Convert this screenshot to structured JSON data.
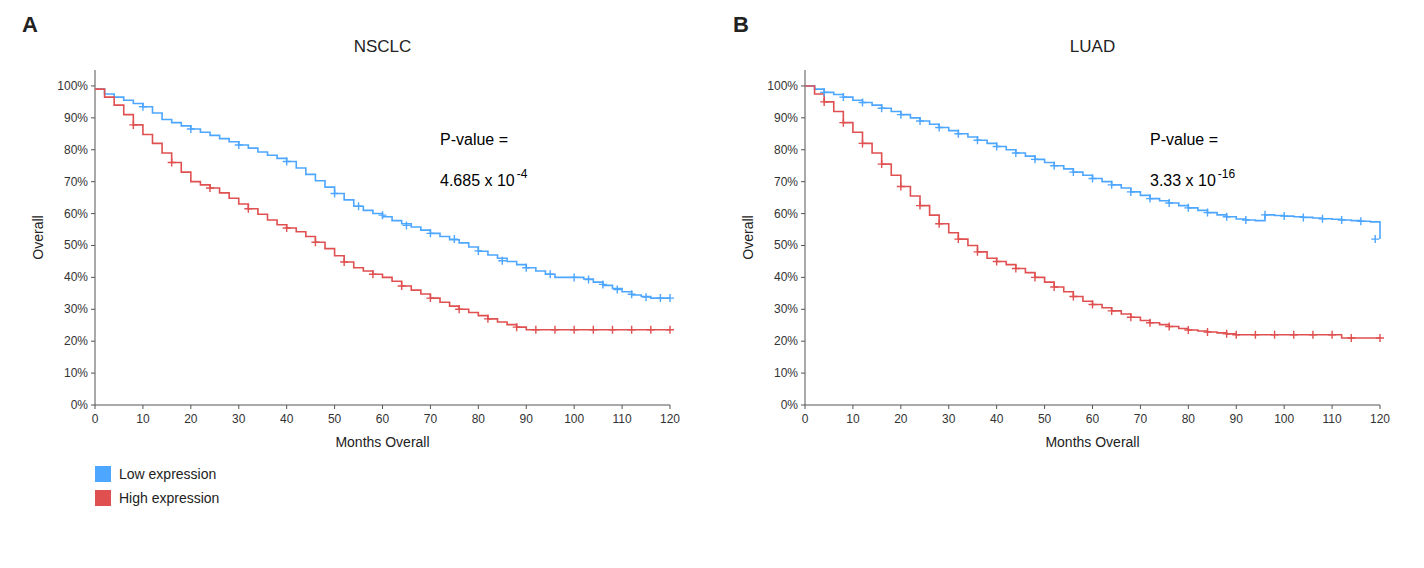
{
  "chart_data": [
    {
      "type": "step",
      "title": "NSCLC",
      "panel_label": "A",
      "x_label": "Months Overall",
      "y_label": "Overall",
      "annotations": [
        "P-value =",
        "4.685 x 10",
        "-4"
      ],
      "xlim": [
        0,
        120
      ],
      "ylim": [
        0,
        1.05
      ],
      "xticks": [
        0,
        10,
        20,
        30,
        40,
        50,
        60,
        70,
        80,
        90,
        100,
        110,
        120
      ],
      "yticks": [
        {
          "value": 0.0,
          "label": "0%"
        },
        {
          "value": 0.1,
          "label": "10%"
        },
        {
          "value": 0.2,
          "label": "20%"
        },
        {
          "value": 0.3,
          "label": "30%"
        },
        {
          "value": 0.4,
          "label": "40%"
        },
        {
          "value": 0.5,
          "label": "50%"
        },
        {
          "value": 0.6,
          "label": "60%"
        },
        {
          "value": 0.7,
          "label": "70%"
        },
        {
          "value": 0.8,
          "label": "80%"
        },
        {
          "value": 0.9,
          "label": "90%"
        },
        {
          "value": 1.0,
          "label": "100%"
        }
      ],
      "grid": false,
      "legend": "lower left",
      "series": [
        {
          "name": "Low expression",
          "type": "step",
          "color": "#4da6ff",
          "x": [
            0,
            2,
            4,
            6,
            8,
            10,
            12,
            14,
            16,
            18,
            20,
            22,
            24,
            26,
            28,
            30,
            32,
            34,
            36,
            38,
            40,
            42,
            44,
            46,
            48,
            50,
            52,
            54,
            56,
            58,
            60,
            62,
            64,
            66,
            68,
            70,
            72,
            74,
            76,
            78,
            80,
            82,
            84,
            86,
            88,
            90,
            92,
            94,
            96,
            98,
            100,
            102,
            104,
            106,
            108,
            110,
            112,
            114,
            116,
            118,
            120
          ],
          "values": [
            0.99,
            0.975,
            0.965,
            0.955,
            0.945,
            0.935,
            0.915,
            0.895,
            0.885,
            0.875,
            0.865,
            0.855,
            0.845,
            0.835,
            0.825,
            0.815,
            0.805,
            0.793,
            0.783,
            0.773,
            0.763,
            0.743,
            0.723,
            0.703,
            0.683,
            0.663,
            0.643,
            0.623,
            0.61,
            0.6,
            0.59,
            0.578,
            0.568,
            0.558,
            0.548,
            0.538,
            0.528,
            0.518,
            0.508,
            0.495,
            0.482,
            0.47,
            0.46,
            0.45,
            0.44,
            0.43,
            0.42,
            0.41,
            0.4,
            0.4,
            0.4,
            0.395,
            0.385,
            0.375,
            0.365,
            0.355,
            0.345,
            0.34,
            0.335,
            0.335,
            0.335
          ]
        },
        {
          "name": "High expression",
          "type": "step",
          "color": "#e05050",
          "x": [
            0,
            2,
            4,
            6,
            8,
            10,
            12,
            14,
            16,
            18,
            20,
            22,
            24,
            26,
            28,
            30,
            32,
            34,
            36,
            38,
            40,
            42,
            44,
            46,
            48,
            50,
            52,
            54,
            56,
            58,
            60,
            62,
            64,
            66,
            68,
            70,
            72,
            74,
            76,
            78,
            80,
            82,
            84,
            86,
            88,
            90,
            92,
            94,
            96,
            98,
            100,
            102,
            104,
            106,
            108,
            110,
            112,
            114,
            116,
            118,
            120
          ],
          "values": [
            0.99,
            0.965,
            0.94,
            0.91,
            0.878,
            0.848,
            0.82,
            0.79,
            0.76,
            0.73,
            0.7,
            0.69,
            0.68,
            0.665,
            0.648,
            0.63,
            0.615,
            0.598,
            0.58,
            0.565,
            0.555,
            0.543,
            0.528,
            0.51,
            0.49,
            0.468,
            0.448,
            0.43,
            0.42,
            0.41,
            0.4,
            0.388,
            0.373,
            0.36,
            0.348,
            0.335,
            0.322,
            0.31,
            0.3,
            0.29,
            0.28,
            0.27,
            0.26,
            0.252,
            0.244,
            0.236,
            0.236,
            0.236,
            0.236,
            0.236,
            0.236,
            0.236,
            0.236,
            0.236,
            0.236,
            0.236,
            0.236,
            0.236,
            0.236,
            0.236,
            0.236
          ]
        },
        {
          "type": "scatter",
          "marker": "plus",
          "color": "#4da6ff",
          "x": [
            10,
            20,
            30,
            40,
            50,
            55,
            60,
            65,
            70,
            75,
            80,
            85,
            90,
            95,
            100,
            103,
            106,
            109,
            112,
            115,
            118,
            120
          ],
          "values": [
            0.935,
            0.865,
            0.815,
            0.763,
            0.663,
            0.623,
            0.595,
            0.563,
            0.538,
            0.52,
            0.483,
            0.452,
            0.43,
            0.41,
            0.4,
            0.393,
            0.378,
            0.362,
            0.347,
            0.338,
            0.335,
            0.335
          ]
        },
        {
          "type": "scatter",
          "marker": "plus",
          "color": "#e05050",
          "x": [
            8,
            16,
            24,
            32,
            40,
            46,
            52,
            58,
            64,
            70,
            76,
            82,
            88,
            92,
            96,
            100,
            104,
            108,
            112,
            116,
            120
          ],
          "values": [
            0.878,
            0.76,
            0.68,
            0.615,
            0.555,
            0.51,
            0.448,
            0.41,
            0.373,
            0.335,
            0.3,
            0.27,
            0.244,
            0.236,
            0.236,
            0.236,
            0.236,
            0.236,
            0.236,
            0.236,
            0.236
          ]
        }
      ]
    },
    {
      "type": "step",
      "title": "LUAD",
      "panel_label": "B",
      "x_label": "Months Overall",
      "y_label": "Overall",
      "annotations": [
        "P-value =",
        "3.33 x 10",
        "-16"
      ],
      "xlim": [
        0,
        120
      ],
      "ylim": [
        0,
        1.05
      ],
      "xticks": [
        0,
        10,
        20,
        30,
        40,
        50,
        60,
        70,
        80,
        90,
        100,
        110,
        120
      ],
      "yticks": [
        {
          "value": 0.0,
          "label": "0%"
        },
        {
          "value": 0.1,
          "label": "10%"
        },
        {
          "value": 0.2,
          "label": "20%"
        },
        {
          "value": 0.3,
          "label": "30%"
        },
        {
          "value": 0.4,
          "label": "40%"
        },
        {
          "value": 0.5,
          "label": "50%"
        },
        {
          "value": 0.6,
          "label": "60%"
        },
        {
          "value": 0.7,
          "label": "70%"
        },
        {
          "value": 0.8,
          "label": "80%"
        },
        {
          "value": 0.9,
          "label": "90%"
        },
        {
          "value": 1.0,
          "label": "100%"
        }
      ],
      "grid": false,
      "series": [
        {
          "type": "step",
          "color": "#4da6ff",
          "x": [
            0,
            2,
            4,
            6,
            8,
            10,
            12,
            14,
            16,
            18,
            20,
            22,
            24,
            26,
            28,
            30,
            32,
            34,
            36,
            38,
            40,
            42,
            44,
            46,
            48,
            50,
            52,
            54,
            56,
            58,
            60,
            62,
            64,
            66,
            68,
            70,
            72,
            74,
            76,
            78,
            80,
            82,
            84,
            86,
            88,
            90,
            92,
            94,
            96,
            98,
            100,
            102,
            104,
            106,
            108,
            110,
            112,
            114,
            116,
            118,
            120
          ],
          "values": [
            1.0,
            0.99,
            0.98,
            0.973,
            0.965,
            0.955,
            0.948,
            0.94,
            0.93,
            0.92,
            0.91,
            0.9,
            0.89,
            0.88,
            0.87,
            0.86,
            0.85,
            0.84,
            0.83,
            0.82,
            0.81,
            0.8,
            0.79,
            0.78,
            0.77,
            0.76,
            0.75,
            0.74,
            0.73,
            0.72,
            0.71,
            0.7,
            0.69,
            0.68,
            0.668,
            0.657,
            0.647,
            0.64,
            0.633,
            0.625,
            0.618,
            0.61,
            0.603,
            0.596,
            0.59,
            0.583,
            0.58,
            0.578,
            0.596,
            0.594,
            0.592,
            0.59,
            0.588,
            0.586,
            0.584,
            0.582,
            0.58,
            0.578,
            0.576,
            0.574,
            0.52
          ]
        },
        {
          "type": "step",
          "color": "#e05050",
          "x": [
            0,
            2,
            4,
            6,
            8,
            10,
            12,
            14,
            16,
            18,
            20,
            22,
            24,
            26,
            28,
            30,
            32,
            34,
            36,
            38,
            40,
            42,
            44,
            46,
            48,
            50,
            52,
            54,
            56,
            58,
            60,
            62,
            64,
            66,
            68,
            70,
            72,
            74,
            76,
            78,
            80,
            82,
            84,
            86,
            88,
            90,
            92,
            94,
            96,
            98,
            100,
            102,
            104,
            106,
            108,
            110,
            112,
            114,
            116,
            118,
            120
          ],
          "values": [
            1.0,
            0.975,
            0.95,
            0.92,
            0.885,
            0.855,
            0.82,
            0.79,
            0.755,
            0.72,
            0.685,
            0.655,
            0.625,
            0.595,
            0.568,
            0.54,
            0.52,
            0.5,
            0.48,
            0.46,
            0.45,
            0.44,
            0.428,
            0.415,
            0.4,
            0.385,
            0.37,
            0.355,
            0.34,
            0.325,
            0.315,
            0.305,
            0.295,
            0.285,
            0.275,
            0.265,
            0.258,
            0.252,
            0.246,
            0.24,
            0.235,
            0.232,
            0.229,
            0.226,
            0.223,
            0.22,
            0.22,
            0.22,
            0.22,
            0.22,
            0.22,
            0.22,
            0.22,
            0.22,
            0.22,
            0.22,
            0.21,
            0.21,
            0.21,
            0.21,
            0.21
          ]
        },
        {
          "type": "scatter",
          "marker": "plus",
          "color": "#4da6ff",
          "x": [
            4,
            8,
            12,
            16,
            20,
            24,
            28,
            32,
            36,
            40,
            44,
            48,
            52,
            56,
            60,
            64,
            68,
            72,
            76,
            80,
            84,
            88,
            92,
            96,
            100,
            104,
            108,
            112,
            116,
            119
          ],
          "values": [
            0.98,
            0.965,
            0.948,
            0.93,
            0.91,
            0.89,
            0.87,
            0.85,
            0.83,
            0.81,
            0.79,
            0.77,
            0.75,
            0.73,
            0.71,
            0.69,
            0.668,
            0.647,
            0.633,
            0.618,
            0.603,
            0.59,
            0.58,
            0.596,
            0.592,
            0.588,
            0.584,
            0.58,
            0.576,
            0.52
          ]
        },
        {
          "type": "scatter",
          "marker": "plus",
          "color": "#e05050",
          "x": [
            4,
            8,
            12,
            16,
            20,
            24,
            28,
            32,
            36,
            40,
            44,
            48,
            52,
            56,
            60,
            64,
            68,
            72,
            76,
            80,
            84,
            88,
            90,
            94,
            98,
            102,
            106,
            110,
            114,
            120
          ],
          "values": [
            0.95,
            0.885,
            0.82,
            0.755,
            0.685,
            0.625,
            0.568,
            0.52,
            0.48,
            0.45,
            0.428,
            0.4,
            0.37,
            0.34,
            0.315,
            0.295,
            0.275,
            0.258,
            0.246,
            0.235,
            0.229,
            0.223,
            0.22,
            0.22,
            0.22,
            0.22,
            0.22,
            0.22,
            0.21,
            0.21
          ]
        }
      ]
    }
  ]
}
